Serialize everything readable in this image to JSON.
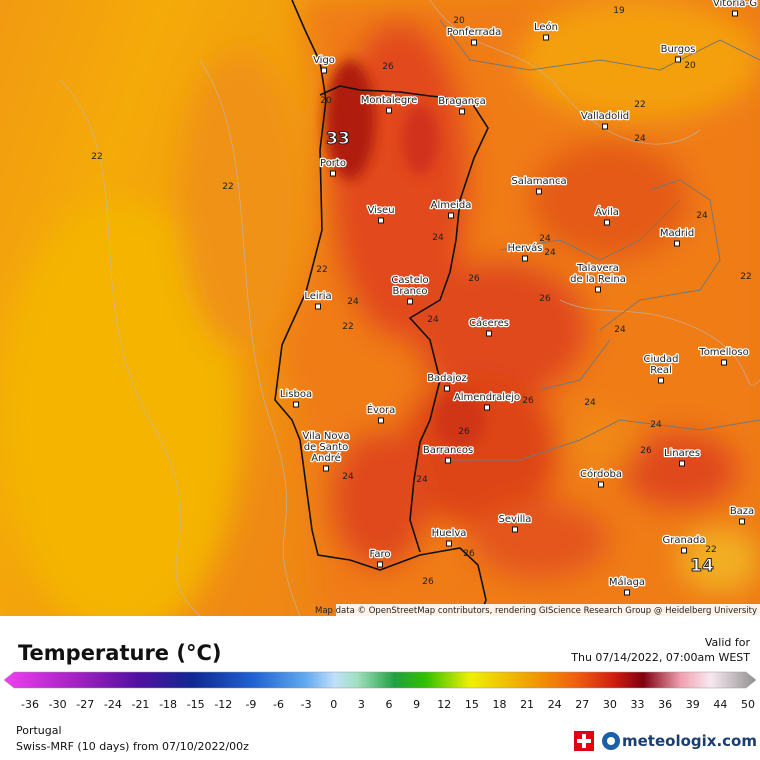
{
  "header": {
    "valid_label": "Valid for",
    "valid_time": "Thu 07/14/2022, 07:00am WEST"
  },
  "legend": {
    "title": "Temperature (°C)",
    "ticks": [
      -36,
      -30,
      -27,
      -24,
      -21,
      -18,
      -15,
      -12,
      -9,
      -6,
      -3,
      0,
      3,
      6,
      9,
      12,
      15,
      18,
      21,
      24,
      27,
      30,
      33,
      36,
      39,
      44,
      50
    ]
  },
  "footer": {
    "region": "Portugal",
    "model": "Swiss-MRF (10 days) from 07/10/2022/00z",
    "brand": "meteologix.com"
  },
  "map": {
    "attribution": "Map data © OpenStreetMap contributors, rendering GIScience Research Group @ Heidelberg University",
    "places": [
      [
        "Vigo"
      ],
      [
        "Ponferrada"
      ],
      [
        "León"
      ],
      [
        "Burgos"
      ],
      [
        "Vitoria-G"
      ],
      [
        "Montalegre"
      ],
      [
        "Bragança"
      ],
      [
        "Valladolid"
      ],
      [
        "Porto"
      ],
      [
        "Salamanca"
      ],
      [
        "Viseu"
      ],
      [
        "Almeida"
      ],
      [
        "Ávila"
      ],
      [
        "Madrid"
      ],
      [
        "Hervás"
      ],
      [
        "Castelo",
        "Branco"
      ],
      [
        "Talavera",
        "de la Reina"
      ],
      [
        "Leiria"
      ],
      [
        "Cáceres"
      ],
      [
        "Ciudad",
        "Real"
      ],
      [
        "Tomelloso"
      ],
      [
        "Badajoz"
      ],
      [
        "Lisboa"
      ],
      [
        "Évora"
      ],
      [
        "Almendralejo"
      ],
      [
        "Vila Nova",
        "de Santo",
        "André"
      ],
      [
        "Barrancos"
      ],
      [
        "Córdoba"
      ],
      [
        "Linares"
      ],
      [
        "Sevilla"
      ],
      [
        "Baza"
      ],
      [
        "Faro"
      ],
      [
        "Huelva"
      ],
      [
        "Granada"
      ],
      [
        "Málaga"
      ]
    ],
    "contour_labels": [
      20,
      19,
      20,
      26,
      20,
      22,
      22,
      24,
      33,
      22,
      24,
      24,
      24,
      24,
      22,
      26,
      22,
      24,
      26,
      22,
      24,
      24,
      26,
      24,
      26,
      24,
      26,
      24,
      24,
      26,
      26,
      22,
      14
    ]
  }
}
